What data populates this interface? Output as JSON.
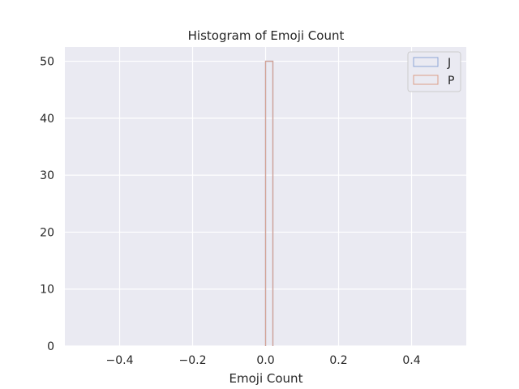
{
  "chart_data": {
    "type": "histogram",
    "title": "Histogram of Emoji Count",
    "xlabel": "Emoji Count",
    "ylabel": "",
    "xlim": [
      -0.55,
      0.55
    ],
    "ylim": [
      0,
      52.5
    ],
    "x_ticks": [
      -0.4,
      -0.2,
      0.0,
      0.2,
      0.4
    ],
    "x_tick_labels": [
      "−0.4",
      "−0.2",
      "0.0",
      "0.2",
      "0.4"
    ],
    "y_ticks": [
      0,
      10,
      20,
      30,
      40,
      50
    ],
    "y_tick_labels": [
      "0",
      "10",
      "20",
      "30",
      "40",
      "50"
    ],
    "grid": true,
    "legend_position": "upper right",
    "histtype": "step",
    "series": [
      {
        "name": "J",
        "color": "#8fa6d6",
        "bins": [
          {
            "start": 0.0,
            "end": 0.02,
            "count": 50
          }
        ]
      },
      {
        "name": "P",
        "color": "#dc9f88",
        "bins": [
          {
            "start": 0.0,
            "end": 0.02,
            "count": 50
          }
        ]
      }
    ],
    "colors": {
      "background": "#eaeaf2",
      "grid": "#ffffff",
      "overlap_edge": "#b5a2ad"
    }
  }
}
